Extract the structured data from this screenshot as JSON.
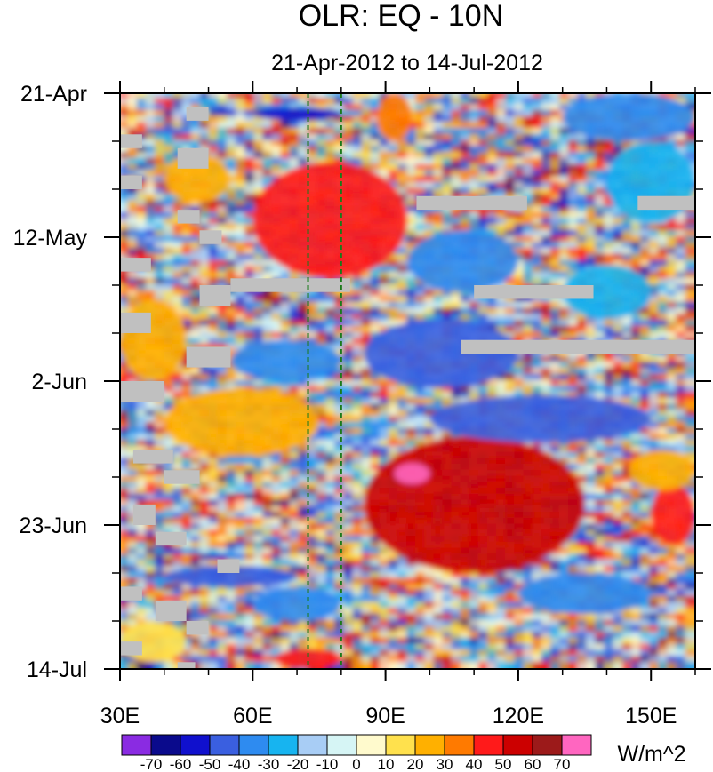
{
  "chart_data": {
    "type": "heatmap",
    "title": "OLR: EQ - 10N",
    "subtitle": "21-Apr-2012 to 14-Jul-2012",
    "xlabel": "",
    "ylabel": "",
    "x_range": [
      30,
      160
    ],
    "x_ticks": [
      {
        "value": 30,
        "label": "30E"
      },
      {
        "value": 60,
        "label": "60E"
      },
      {
        "value": 90,
        "label": "90E"
      },
      {
        "value": 120,
        "label": "120E"
      },
      {
        "value": 150,
        "label": "150E"
      }
    ],
    "y_range": [
      "21-Apr-2012",
      "14-Jul-2012"
    ],
    "y_ticks": [
      {
        "value": "21-Apr-2012",
        "label": "21-Apr"
      },
      {
        "value": "12-May-2012",
        "label": "12-May"
      },
      {
        "value": "2-Jun-2012",
        "label": "2-Jun"
      },
      {
        "value": "23-Jun-2012",
        "label": "23-Jun"
      },
      {
        "value": "14-Jul-2012",
        "label": "14-Jul"
      }
    ],
    "reference_lines": [
      {
        "axis": "x",
        "value": 72.5,
        "style": "dashed",
        "color": "#1a7a1a"
      },
      {
        "axis": "x",
        "value": 80,
        "style": "dashed",
        "color": "#1a7a1a"
      }
    ],
    "units": "W/m^2",
    "colorbar": {
      "levels": [
        -70,
        -60,
        -50,
        -40,
        -30,
        -20,
        -10,
        0,
        10,
        20,
        30,
        40,
        50,
        60,
        70
      ],
      "labels": [
        "-70",
        "-60",
        "-50",
        "-40",
        "-30",
        "-20",
        "-10",
        "0",
        "10",
        "20",
        "30",
        "40",
        "50",
        "60",
        "70"
      ],
      "colors": [
        "#8a2be2",
        "#0a0a8c",
        "#1010cd",
        "#3a5fe0",
        "#2e8bf0",
        "#17b4f0",
        "#a8cdf5",
        "#d6f5f5",
        "#fffacd",
        "#ffe14d",
        "#ffb000",
        "#ff7a00",
        "#ff1a1a",
        "#cc0000",
        "#9c1a1a",
        "#ff66c0"
      ],
      "orientation": "horizontal",
      "position": "bottom"
    },
    "missing_color": "#c0c0c0",
    "grid": false,
    "anomaly_features": [
      {
        "x": [
          60,
          95
        ],
        "y": [
          "1-May-2012",
          "18-May-2012"
        ],
        "value": 45
      },
      {
        "x": [
          85,
          135
        ],
        "y": [
          "10-Jun-2012",
          "30-Jun-2012"
        ],
        "value": 50
      },
      {
        "x": [
          92,
          100
        ],
        "y": [
          "14-Jun-2012",
          "17-Jun-2012"
        ],
        "value": 70
      },
      {
        "x": [
          40,
          75
        ],
        "y": [
          "3-Jun-2012",
          "13-Jun-2012"
        ],
        "value": 25
      },
      {
        "x": [
          30,
          45
        ],
        "y": [
          "21-May-2012",
          "2-Jun-2012"
        ],
        "value": 25
      },
      {
        "x": [
          150,
          160
        ],
        "y": [
          "17-Jun-2012",
          "26-Jun-2012"
        ],
        "value": 45
      },
      {
        "x": [
          85,
          120
        ],
        "y": [
          "24-May-2012",
          "3-Jun-2012"
        ],
        "value": -45
      },
      {
        "x": [
          55,
          80
        ],
        "y": [
          "27-May-2012",
          "2-Jun-2012"
        ],
        "value": -40
      },
      {
        "x": [
          60,
          80
        ],
        "y": [
          "23-Apr-2012",
          "25-Apr-2012"
        ],
        "value": -60
      },
      {
        "x": [
          100,
          150
        ],
        "y": [
          "4-Jun-2012",
          "11-Jun-2012"
        ],
        "value": -45
      },
      {
        "x": [
          40,
          70
        ],
        "y": [
          "29-Jun-2012",
          "2-Jul-2012"
        ],
        "value": -50
      },
      {
        "x": [
          60,
          80
        ],
        "y": [
          "2-Jul-2012",
          "7-Jul-2012"
        ],
        "value": -40
      },
      {
        "x": [
          120,
          150
        ],
        "y": [
          "30-Jun-2012",
          "6-Jul-2012"
        ],
        "value": -40
      },
      {
        "x": [
          95,
          120
        ],
        "y": [
          "11-May-2012",
          "20-May-2012"
        ],
        "value": -35
      },
      {
        "x": [
          130,
          160
        ],
        "y": [
          "21-Apr-2012",
          "28-Apr-2012"
        ],
        "value": -35
      },
      {
        "x": [
          140,
          160
        ],
        "y": [
          "28-Apr-2012",
          "10-May-2012"
        ],
        "value": -30
      },
      {
        "x": [
          30,
          45
        ],
        "y": [
          "7-Jul-2012",
          "13-Jul-2012"
        ],
        "value": 15
      },
      {
        "x": [
          65,
          80
        ],
        "y": [
          "11-Jul-2012",
          "14-Jul-2012"
        ],
        "value": 45
      },
      {
        "x": [
          88,
          96
        ],
        "y": [
          "21-Apr-2012",
          "28-Apr-2012"
        ],
        "value": 30
      },
      {
        "x": [
          40,
          55
        ],
        "y": [
          "30-Apr-2012",
          "7-May-2012"
        ],
        "value": 25
      },
      {
        "x": [
          130,
          150
        ],
        "y": [
          "16-May-2012",
          "24-May-2012"
        ],
        "value": -25
      },
      {
        "x": [
          145,
          160
        ],
        "y": [
          "12-Jun-2012",
          "18-Jun-2012"
        ],
        "value": 25
      }
    ],
    "missing_data_segments": [
      {
        "x": [
          97,
          122
        ],
        "y": [
          "6-May-2012",
          "8-May-2012"
        ]
      },
      {
        "x": [
          147,
          160
        ],
        "y": [
          "6-May-2012",
          "8-May-2012"
        ]
      },
      {
        "x": [
          55,
          82
        ],
        "y": [
          "18-May-2012",
          "20-May-2012"
        ]
      },
      {
        "x": [
          110,
          137
        ],
        "y": [
          "19-May-2012",
          "21-May-2012"
        ]
      },
      {
        "x": [
          107,
          160
        ],
        "y": [
          "27-May-2012",
          "29-May-2012"
        ]
      },
      {
        "x": [
          48,
          55
        ],
        "y": [
          "19-May-2012",
          "22-May-2012"
        ]
      },
      {
        "x": [
          45,
          55
        ],
        "y": [
          "28-May-2012",
          "31-May-2012"
        ]
      },
      {
        "x": [
          30,
          35
        ],
        "y": [
          "27-Apr-2012",
          "29-Apr-2012"
        ]
      },
      {
        "x": [
          45,
          50
        ],
        "y": [
          "23-Apr-2012",
          "25-Apr-2012"
        ]
      },
      {
        "x": [
          43,
          50
        ],
        "y": [
          "29-Apr-2012",
          "2-May-2012"
        ]
      },
      {
        "x": [
          30,
          35
        ],
        "y": [
          "3-May-2012",
          "5-May-2012"
        ]
      },
      {
        "x": [
          43,
          48
        ],
        "y": [
          "8-May-2012",
          "10-May-2012"
        ]
      },
      {
        "x": [
          48,
          53
        ],
        "y": [
          "11-May-2012",
          "13-May-2012"
        ]
      },
      {
        "x": [
          30,
          37
        ],
        "y": [
          "15-May-2012",
          "17-May-2012"
        ]
      },
      {
        "x": [
          30,
          37
        ],
        "y": [
          "23-May-2012",
          "26-May-2012"
        ]
      },
      {
        "x": [
          30,
          40
        ],
        "y": [
          "2-Jun-2012",
          "5-Jun-2012"
        ]
      },
      {
        "x": [
          33,
          42
        ],
        "y": [
          "12-Jun-2012",
          "14-Jun-2012"
        ]
      },
      {
        "x": [
          40,
          48
        ],
        "y": [
          "15-Jun-2012",
          "17-Jun-2012"
        ]
      },
      {
        "x": [
          33,
          38
        ],
        "y": [
          "20-Jun-2012",
          "23-Jun-2012"
        ]
      },
      {
        "x": [
          38,
          45
        ],
        "y": [
          "24-Jun-2012",
          "26-Jun-2012"
        ]
      },
      {
        "x": [
          52,
          57
        ],
        "y": [
          "28-Jun-2012",
          "30-Jun-2012"
        ]
      },
      {
        "x": [
          30,
          35
        ],
        "y": [
          "2-Jul-2012",
          "4-Jul-2012"
        ]
      },
      {
        "x": [
          38,
          45
        ],
        "y": [
          "4-Jul-2012",
          "7-Jul-2012"
        ]
      },
      {
        "x": [
          45,
          50
        ],
        "y": [
          "7-Jul-2012",
          "9-Jul-2012"
        ]
      },
      {
        "x": [
          30,
          35
        ],
        "y": [
          "10-Jul-2012",
          "12-Jul-2012"
        ]
      },
      {
        "x": [
          43,
          47
        ],
        "y": [
          "13-Jul-2012",
          "14-Jul-2012"
        ]
      }
    ]
  }
}
